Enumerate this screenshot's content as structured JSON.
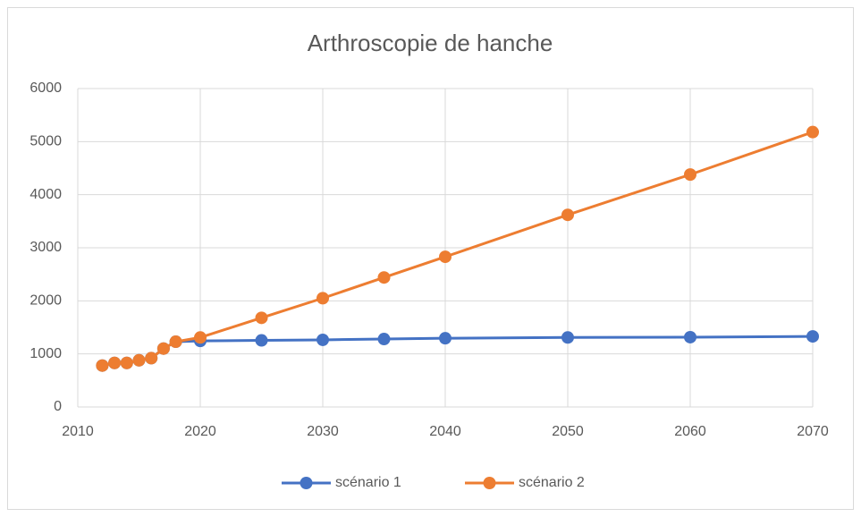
{
  "chart_data": {
    "type": "line",
    "title": "Arthroscopie de hanche",
    "x": [
      2012,
      2013,
      2014,
      2015,
      2016,
      2017,
      2018,
      2020,
      2025,
      2030,
      2035,
      2040,
      2050,
      2060,
      2070
    ],
    "series": [
      {
        "name": "scénario 1",
        "color": "#4472c4",
        "values": [
          780,
          830,
          830,
          880,
          920,
          1100,
          1230,
          1245,
          1255,
          1265,
          1280,
          1295,
          1310,
          1315,
          1330
        ]
      },
      {
        "name": "scénario 2",
        "color": "#ed7d31",
        "values": [
          780,
          830,
          830,
          880,
          920,
          1100,
          1230,
          1310,
          1680,
          2050,
          2440,
          2830,
          3620,
          4380,
          5180
        ]
      }
    ],
    "xlim": [
      2010,
      2070
    ],
    "xticks": [
      2010,
      2020,
      2030,
      2040,
      2050,
      2060,
      2070
    ],
    "ylim": [
      0,
      6000
    ],
    "yticks": [
      0,
      1000,
      2000,
      3000,
      4000,
      5000,
      6000
    ],
    "grid": true,
    "legend": "bottom"
  }
}
